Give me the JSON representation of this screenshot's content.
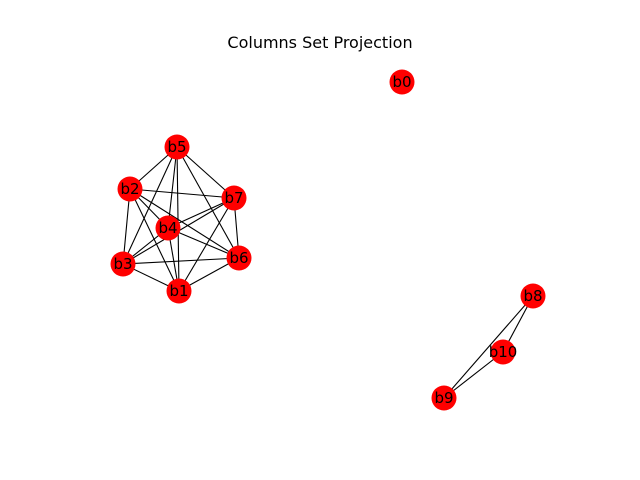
{
  "title": "Columns Set Projection",
  "node_color": "#ff0000",
  "edge_color": "#000000",
  "nodes": [
    "b0",
    "b1",
    "b2",
    "b3",
    "b4",
    "b5",
    "b6",
    "b7",
    "b8",
    "b9",
    "b10"
  ],
  "edges": [
    [
      "b1",
      "b2"
    ],
    [
      "b1",
      "b3"
    ],
    [
      "b1",
      "b4"
    ],
    [
      "b1",
      "b5"
    ],
    [
      "b1",
      "b6"
    ],
    [
      "b1",
      "b7"
    ],
    [
      "b2",
      "b3"
    ],
    [
      "b2",
      "b4"
    ],
    [
      "b2",
      "b5"
    ],
    [
      "b2",
      "b6"
    ],
    [
      "b2",
      "b7"
    ],
    [
      "b3",
      "b4"
    ],
    [
      "b3",
      "b5"
    ],
    [
      "b3",
      "b6"
    ],
    [
      "b3",
      "b7"
    ],
    [
      "b4",
      "b5"
    ],
    [
      "b4",
      "b6"
    ],
    [
      "b4",
      "b7"
    ],
    [
      "b5",
      "b6"
    ],
    [
      "b5",
      "b7"
    ],
    [
      "b6",
      "b7"
    ],
    [
      "b8",
      "b9"
    ],
    [
      "b8",
      "b10"
    ],
    [
      "b9",
      "b10"
    ]
  ]
}
